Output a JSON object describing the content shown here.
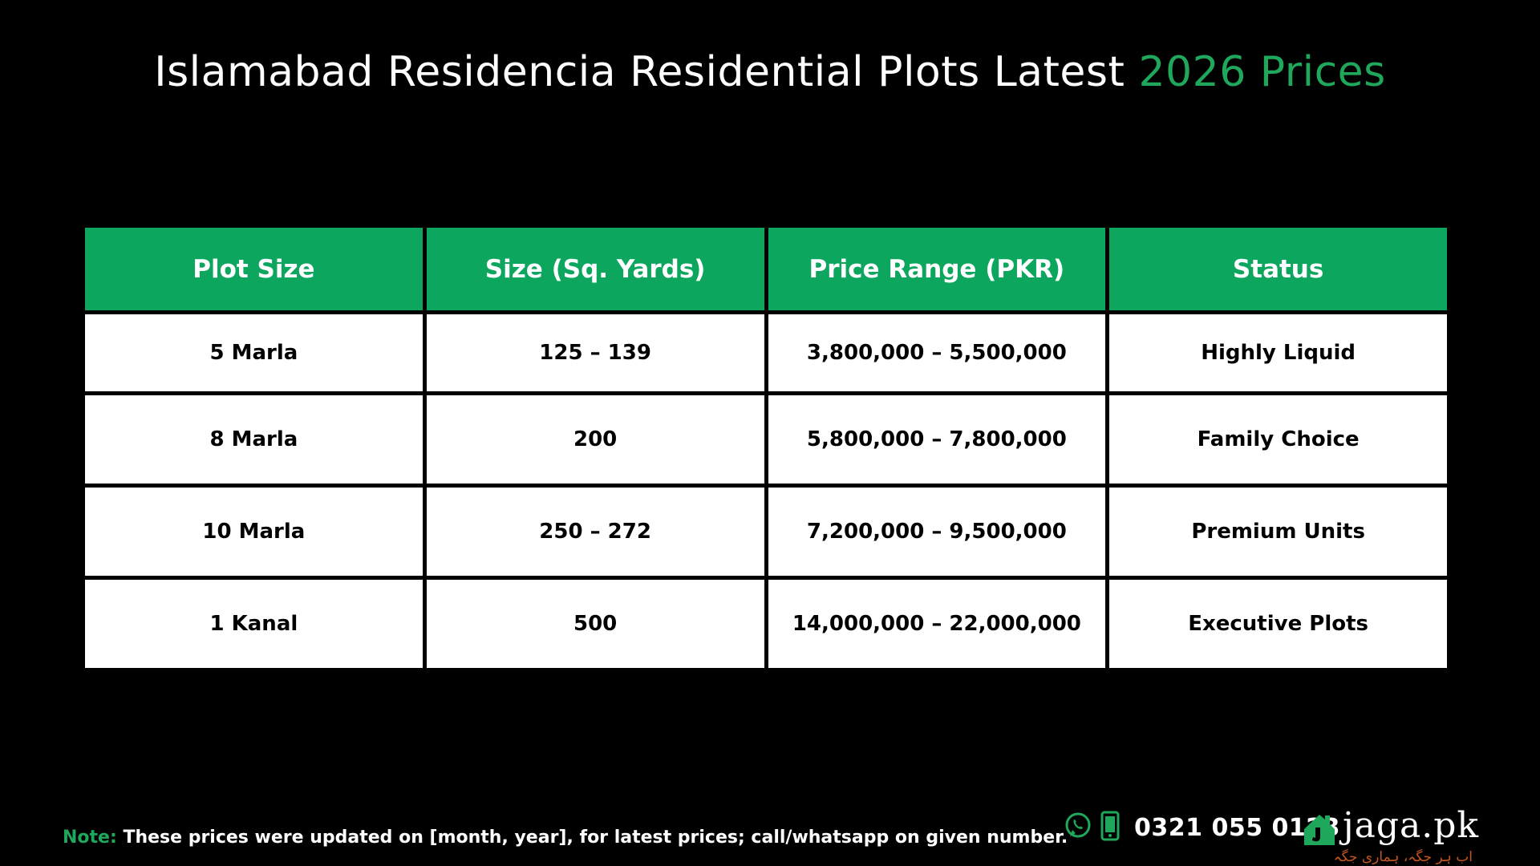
{
  "title": {
    "text": "Islamabad Residencia Residential Plots Latest",
    "accent": "2026 Prices"
  },
  "table": {
    "headers": [
      "Plot Size",
      "Size (Sq. Yards)",
      "Price Range (PKR)",
      "Status"
    ],
    "rows": [
      [
        "5 Marla",
        "125 – 139",
        "3,800,000 – 5,500,000",
        "Highly Liquid"
      ],
      [
        "8 Marla",
        "200",
        "5,800,000 – 7,800,000",
        "Family Choice"
      ],
      [
        "10 Marla",
        "250 – 272",
        "7,200,000 – 9,500,000",
        "Premium Units"
      ],
      [
        "1 Kanal",
        "500",
        "14,000,000 – 22,000,000",
        "Executive Plots"
      ]
    ]
  },
  "note": {
    "label": "Note:",
    "text": "These prices were updated on [month, year], for latest prices; call/whatsapp on given number."
  },
  "contact": {
    "phone": "0321 055 0123",
    "icons": [
      "whatsapp-icon",
      "mobile-phone-icon"
    ]
  },
  "brand": {
    "name": "jaga.pk",
    "tagline": "اب ہر جگہ، ہماری جگہ"
  },
  "colors": {
    "background": "#000000",
    "accent_green": "#1fa85c",
    "header_green": "#0ca65e",
    "cell_background": "#ffffff",
    "tagline_orange": "#c2551e"
  }
}
